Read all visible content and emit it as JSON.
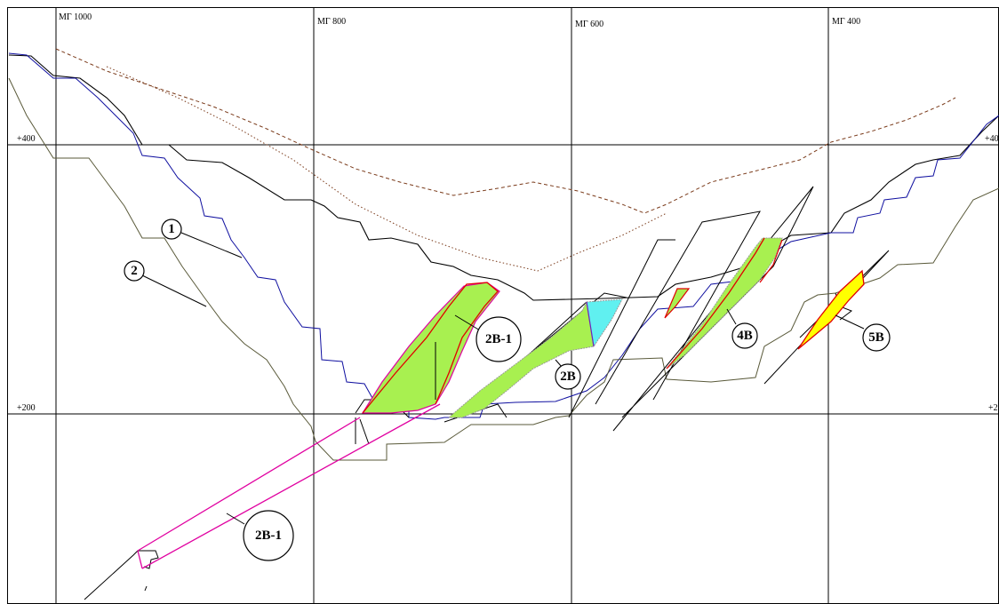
{
  "grid": {
    "vertical_labels": [
      "МГ 1000",
      "МГ 800",
      "МГ 600",
      "МГ 400"
    ],
    "horizontal_labels": {
      "elev_400_left": "+400",
      "elev_400_right": "+40",
      "elev_200_left": "+200",
      "elev_200_right": "+2"
    }
  },
  "callouts": {
    "line_1": "1",
    "line_2": "2",
    "zone_2b1_upper": "2В-1",
    "zone_2b": "2В",
    "zone_4b": "4В",
    "zone_5b": "5В",
    "zone_2b1_lower": "2В-1"
  },
  "colors": {
    "green_fill": "#a8f050",
    "cyan_fill": "#60f0f0",
    "yellow_fill": "#ffff00",
    "red_outline": "#e00000",
    "magenta_outline": "#e000a0",
    "blue_line": "#1010a0",
    "olive_line": "#5a5a3a",
    "brown_dashed": "#7a3a1a"
  }
}
